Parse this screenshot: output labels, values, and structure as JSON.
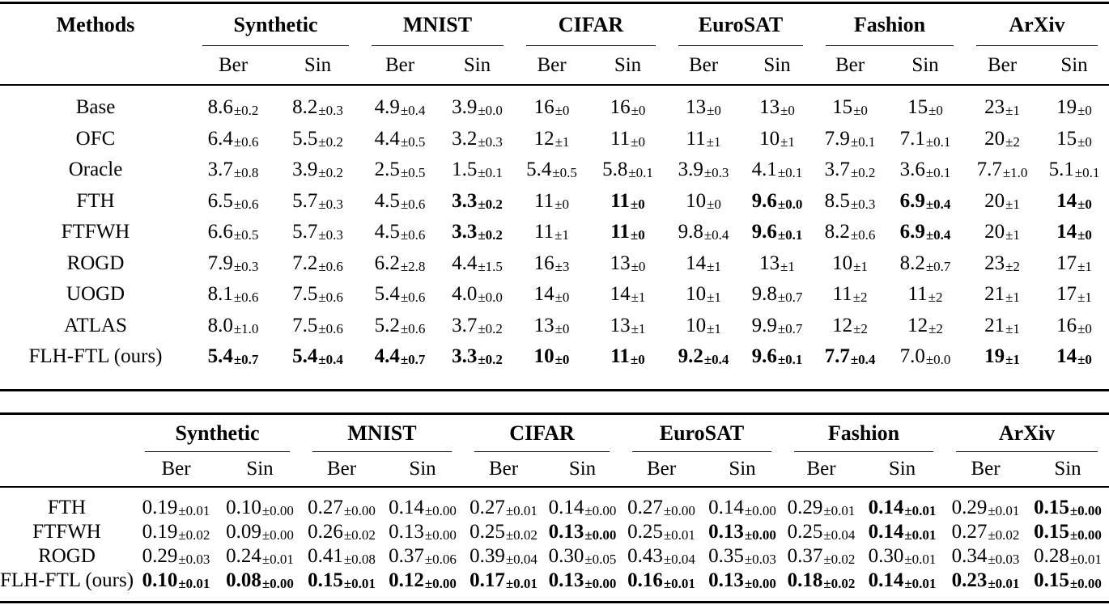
{
  "colors": {
    "background": "#ffffff",
    "text": "#000000",
    "rule": "#000000"
  },
  "plus_minus": "±",
  "subcolumns": [
    "Ber",
    "Sin"
  ],
  "datasets": [
    "Synthetic",
    "MNIST",
    "CIFAR",
    "EuroSAT",
    "Fashion",
    "ArXiv"
  ],
  "tables": [
    {
      "corner_label": "Methods",
      "rows": [
        {
          "method": "Base",
          "cells": [
            {
              "v": "8.6",
              "e": "0.2",
              "b": false
            },
            {
              "v": "8.2",
              "e": "0.3",
              "b": false
            },
            {
              "v": "4.9",
              "e": "0.4",
              "b": false
            },
            {
              "v": "3.9",
              "e": "0.0",
              "b": false
            },
            {
              "v": "16",
              "e": "0",
              "b": false
            },
            {
              "v": "16",
              "e": "0",
              "b": false
            },
            {
              "v": "13",
              "e": "0",
              "b": false
            },
            {
              "v": "13",
              "e": "0",
              "b": false
            },
            {
              "v": "15",
              "e": "0",
              "b": false
            },
            {
              "v": "15",
              "e": "0",
              "b": false
            },
            {
              "v": "23",
              "e": "1",
              "b": false
            },
            {
              "v": "19",
              "e": "0",
              "b": false
            }
          ]
        },
        {
          "method": "OFC",
          "cells": [
            {
              "v": "6.4",
              "e": "0.6",
              "b": false
            },
            {
              "v": "5.5",
              "e": "0.2",
              "b": false
            },
            {
              "v": "4.4",
              "e": "0.5",
              "b": false
            },
            {
              "v": "3.2",
              "e": "0.3",
              "b": false
            },
            {
              "v": "12",
              "e": "1",
              "b": false
            },
            {
              "v": "11",
              "e": "0",
              "b": false
            },
            {
              "v": "11",
              "e": "1",
              "b": false
            },
            {
              "v": "10",
              "e": "1",
              "b": false
            },
            {
              "v": "7.9",
              "e": "0.1",
              "b": false
            },
            {
              "v": "7.1",
              "e": "0.1",
              "b": false
            },
            {
              "v": "20",
              "e": "2",
              "b": false
            },
            {
              "v": "15",
              "e": "0",
              "b": false
            }
          ]
        },
        {
          "method": "Oracle",
          "cells": [
            {
              "v": "3.7",
              "e": "0.8",
              "b": false
            },
            {
              "v": "3.9",
              "e": "0.2",
              "b": false
            },
            {
              "v": "2.5",
              "e": "0.5",
              "b": false
            },
            {
              "v": "1.5",
              "e": "0.1",
              "b": false
            },
            {
              "v": "5.4",
              "e": "0.5",
              "b": false
            },
            {
              "v": "5.8",
              "e": "0.1",
              "b": false
            },
            {
              "v": "3.9",
              "e": "0.3",
              "b": false
            },
            {
              "v": "4.1",
              "e": "0.1",
              "b": false
            },
            {
              "v": "3.7",
              "e": "0.2",
              "b": false
            },
            {
              "v": "3.6",
              "e": "0.1",
              "b": false
            },
            {
              "v": "7.7",
              "e": "1.0",
              "b": false
            },
            {
              "v": "5.1",
              "e": "0.1",
              "b": false
            }
          ]
        },
        {
          "method": "FTH",
          "cells": [
            {
              "v": "6.5",
              "e": "0.6",
              "b": false
            },
            {
              "v": "5.7",
              "e": "0.3",
              "b": false
            },
            {
              "v": "4.5",
              "e": "0.6",
              "b": false
            },
            {
              "v": "3.3",
              "e": "0.2",
              "b": true
            },
            {
              "v": "11",
              "e": "0",
              "b": false
            },
            {
              "v": "11",
              "e": "0",
              "b": true
            },
            {
              "v": "10",
              "e": "0",
              "b": false
            },
            {
              "v": "9.6",
              "e": "0.0",
              "b": true
            },
            {
              "v": "8.5",
              "e": "0.3",
              "b": false
            },
            {
              "v": "6.9",
              "e": "0.4",
              "b": true
            },
            {
              "v": "20",
              "e": "1",
              "b": false
            },
            {
              "v": "14",
              "e": "0",
              "b": true
            }
          ]
        },
        {
          "method": "FTFWH",
          "cells": [
            {
              "v": "6.6",
              "e": "0.5",
              "b": false
            },
            {
              "v": "5.7",
              "e": "0.3",
              "b": false
            },
            {
              "v": "4.5",
              "e": "0.6",
              "b": false
            },
            {
              "v": "3.3",
              "e": "0.2",
              "b": true
            },
            {
              "v": "11",
              "e": "1",
              "b": false
            },
            {
              "v": "11",
              "e": "0",
              "b": true
            },
            {
              "v": "9.8",
              "e": "0.4",
              "b": false
            },
            {
              "v": "9.6",
              "e": "0.1",
              "b": true
            },
            {
              "v": "8.2",
              "e": "0.6",
              "b": false
            },
            {
              "v": "6.9",
              "e": "0.4",
              "b": true
            },
            {
              "v": "20",
              "e": "1",
              "b": false
            },
            {
              "v": "14",
              "e": "0",
              "b": true
            }
          ]
        },
        {
          "method": "ROGD",
          "cells": [
            {
              "v": "7.9",
              "e": "0.3",
              "b": false
            },
            {
              "v": "7.2",
              "e": "0.6",
              "b": false
            },
            {
              "v": "6.2",
              "e": "2.8",
              "b": false
            },
            {
              "v": "4.4",
              "e": "1.5",
              "b": false
            },
            {
              "v": "16",
              "e": "3",
              "b": false
            },
            {
              "v": "13",
              "e": "0",
              "b": false
            },
            {
              "v": "14",
              "e": "1",
              "b": false
            },
            {
              "v": "13",
              "e": "1",
              "b": false
            },
            {
              "v": "10",
              "e": "1",
              "b": false
            },
            {
              "v": "8.2",
              "e": "0.7",
              "b": false
            },
            {
              "v": "23",
              "e": "2",
              "b": false
            },
            {
              "v": "17",
              "e": "1",
              "b": false
            }
          ]
        },
        {
          "method": "UOGD",
          "cells": [
            {
              "v": "8.1",
              "e": "0.6",
              "b": false
            },
            {
              "v": "7.5",
              "e": "0.6",
              "b": false
            },
            {
              "v": "5.4",
              "e": "0.6",
              "b": false
            },
            {
              "v": "4.0",
              "e": "0.0",
              "b": false
            },
            {
              "v": "14",
              "e": "0",
              "b": false
            },
            {
              "v": "14",
              "e": "1",
              "b": false
            },
            {
              "v": "10",
              "e": "1",
              "b": false
            },
            {
              "v": "9.8",
              "e": "0.7",
              "b": false
            },
            {
              "v": "11",
              "e": "2",
              "b": false
            },
            {
              "v": "11",
              "e": "2",
              "b": false
            },
            {
              "v": "21",
              "e": "1",
              "b": false
            },
            {
              "v": "17",
              "e": "1",
              "b": false
            }
          ]
        },
        {
          "method": "ATLAS",
          "cells": [
            {
              "v": "8.0",
              "e": "1.0",
              "b": false
            },
            {
              "v": "7.5",
              "e": "0.6",
              "b": false
            },
            {
              "v": "5.2",
              "e": "0.6",
              "b": false
            },
            {
              "v": "3.7",
              "e": "0.2",
              "b": false
            },
            {
              "v": "13",
              "e": "0",
              "b": false
            },
            {
              "v": "13",
              "e": "1",
              "b": false
            },
            {
              "v": "10",
              "e": "1",
              "b": false
            },
            {
              "v": "9.9",
              "e": "0.7",
              "b": false
            },
            {
              "v": "12",
              "e": "2",
              "b": false
            },
            {
              "v": "12",
              "e": "2",
              "b": false
            },
            {
              "v": "21",
              "e": "1",
              "b": false
            },
            {
              "v": "16",
              "e": "0",
              "b": false
            }
          ]
        },
        {
          "method": "FLH-FTL (ours)",
          "cells": [
            {
              "v": "5.4",
              "e": "0.7",
              "b": true
            },
            {
              "v": "5.4",
              "e": "0.4",
              "b": true
            },
            {
              "v": "4.4",
              "e": "0.7",
              "b": true
            },
            {
              "v": "3.3",
              "e": "0.2",
              "b": true
            },
            {
              "v": "10",
              "e": "0",
              "b": true
            },
            {
              "v": "11",
              "e": "0",
              "b": true
            },
            {
              "v": "9.2",
              "e": "0.4",
              "b": true
            },
            {
              "v": "9.6",
              "e": "0.1",
              "b": true
            },
            {
              "v": "7.7",
              "e": "0.4",
              "b": true
            },
            {
              "v": "7.0",
              "e": "0.0",
              "b": false
            },
            {
              "v": "19",
              "e": "1",
              "b": true
            },
            {
              "v": "14",
              "e": "0",
              "b": true
            }
          ]
        }
      ]
    },
    {
      "corner_label": "",
      "rows": [
        {
          "method": "FTH",
          "cells": [
            {
              "v": "0.19",
              "e": "0.01",
              "b": false
            },
            {
              "v": "0.10",
              "e": "0.00",
              "b": false
            },
            {
              "v": "0.27",
              "e": "0.00",
              "b": false
            },
            {
              "v": "0.14",
              "e": "0.00",
              "b": false
            },
            {
              "v": "0.27",
              "e": "0.01",
              "b": false
            },
            {
              "v": "0.14",
              "e": "0.00",
              "b": false
            },
            {
              "v": "0.27",
              "e": "0.00",
              "b": false
            },
            {
              "v": "0.14",
              "e": "0.00",
              "b": false
            },
            {
              "v": "0.29",
              "e": "0.01",
              "b": false
            },
            {
              "v": "0.14",
              "e": "0.01",
              "b": true
            },
            {
              "v": "0.29",
              "e": "0.01",
              "b": false
            },
            {
              "v": "0.15",
              "e": "0.00",
              "b": true
            }
          ]
        },
        {
          "method": "FTFWH",
          "cells": [
            {
              "v": "0.19",
              "e": "0.02",
              "b": false
            },
            {
              "v": "0.09",
              "e": "0.00",
              "b": false
            },
            {
              "v": "0.26",
              "e": "0.02",
              "b": false
            },
            {
              "v": "0.13",
              "e": "0.00",
              "b": false
            },
            {
              "v": "0.25",
              "e": "0.02",
              "b": false
            },
            {
              "v": "0.13",
              "e": "0.00",
              "b": true
            },
            {
              "v": "0.25",
              "e": "0.01",
              "b": false
            },
            {
              "v": "0.13",
              "e": "0.00",
              "b": true
            },
            {
              "v": "0.25",
              "e": "0.04",
              "b": false
            },
            {
              "v": "0.14",
              "e": "0.01",
              "b": true
            },
            {
              "v": "0.27",
              "e": "0.02",
              "b": false
            },
            {
              "v": "0.15",
              "e": "0.00",
              "b": true
            }
          ]
        },
        {
          "method": "ROGD",
          "cells": [
            {
              "v": "0.29",
              "e": "0.03",
              "b": false
            },
            {
              "v": "0.24",
              "e": "0.01",
              "b": false
            },
            {
              "v": "0.41",
              "e": "0.08",
              "b": false
            },
            {
              "v": "0.37",
              "e": "0.06",
              "b": false
            },
            {
              "v": "0.39",
              "e": "0.04",
              "b": false
            },
            {
              "v": "0.30",
              "e": "0.05",
              "b": false
            },
            {
              "v": "0.43",
              "e": "0.04",
              "b": false
            },
            {
              "v": "0.35",
              "e": "0.03",
              "b": false
            },
            {
              "v": "0.37",
              "e": "0.02",
              "b": false
            },
            {
              "v": "0.30",
              "e": "0.01",
              "b": false
            },
            {
              "v": "0.34",
              "e": "0.03",
              "b": false
            },
            {
              "v": "0.28",
              "e": "0.01",
              "b": false
            }
          ]
        },
        {
          "method": "FLH-FTL (ours)",
          "cells": [
            {
              "v": "0.10",
              "e": "0.01",
              "b": true
            },
            {
              "v": "0.08",
              "e": "0.00",
              "b": true
            },
            {
              "v": "0.15",
              "e": "0.01",
              "b": true
            },
            {
              "v": "0.12",
              "e": "0.00",
              "b": true
            },
            {
              "v": "0.17",
              "e": "0.01",
              "b": true
            },
            {
              "v": "0.13",
              "e": "0.00",
              "b": true
            },
            {
              "v": "0.16",
              "e": "0.01",
              "b": true
            },
            {
              "v": "0.13",
              "e": "0.00",
              "b": true
            },
            {
              "v": "0.18",
              "e": "0.02",
              "b": true
            },
            {
              "v": "0.14",
              "e": "0.01",
              "b": true
            },
            {
              "v": "0.23",
              "e": "0.01",
              "b": true
            },
            {
              "v": "0.15",
              "e": "0.00",
              "b": true
            }
          ]
        }
      ]
    }
  ]
}
